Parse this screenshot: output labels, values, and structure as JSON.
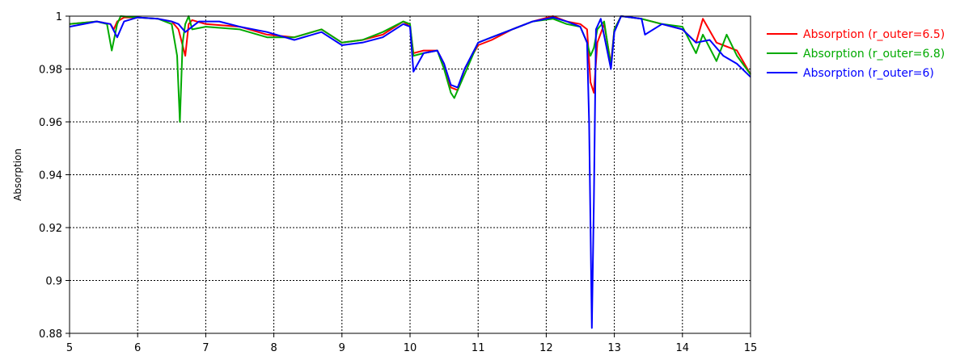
{
  "chart_data": {
    "type": "line",
    "title": "",
    "xlabel": "",
    "ylabel": "Absorption",
    "xlim": [
      5,
      15
    ],
    "ylim": [
      0.88,
      1.0
    ],
    "grid": true,
    "legend_position": "right",
    "x_ticks": [
      "5",
      "6",
      "7",
      "8",
      "9",
      "10",
      "11",
      "12",
      "13",
      "14",
      "15"
    ],
    "y_ticks": [
      "0.88",
      "0.9",
      "0.92",
      "0.94",
      "0.96",
      "0.98",
      "1"
    ],
    "series": [
      {
        "name": "Absorption (r_outer=6.5)",
        "color": "#ff0000",
        "points": [
          [
            5,
            0.997
          ],
          [
            5.4,
            0.998
          ],
          [
            5.6,
            0.997
          ],
          [
            5.65,
            0.995
          ],
          [
            5.7,
            0.998
          ],
          [
            5.8,
            0.9995
          ],
          [
            6,
            0.9995
          ],
          [
            6.3,
            0.999
          ],
          [
            6.5,
            0.998
          ],
          [
            6.6,
            0.995
          ],
          [
            6.7,
            0.985
          ],
          [
            6.75,
            0.997
          ],
          [
            6.8,
            0.9985
          ],
          [
            7,
            0.997
          ],
          [
            7.5,
            0.996
          ],
          [
            7.9,
            0.993
          ],
          [
            8.3,
            0.992
          ],
          [
            8.7,
            0.995
          ],
          [
            9,
            0.99
          ],
          [
            9.3,
            0.991
          ],
          [
            9.6,
            0.993
          ],
          [
            9.9,
            0.998
          ],
          [
            10,
            0.996
          ],
          [
            10.05,
            0.986
          ],
          [
            10.2,
            0.987
          ],
          [
            10.4,
            0.987
          ],
          [
            10.5,
            0.982
          ],
          [
            10.6,
            0.973
          ],
          [
            10.7,
            0.972
          ],
          [
            10.8,
            0.98
          ],
          [
            11,
            0.989
          ],
          [
            11.2,
            0.991
          ],
          [
            11.5,
            0.995
          ],
          [
            11.8,
            0.998
          ],
          [
            12.1,
            1.0
          ],
          [
            12.3,
            0.998
          ],
          [
            12.5,
            0.997
          ],
          [
            12.6,
            0.995
          ],
          [
            12.65,
            0.975
          ],
          [
            12.7,
            0.971
          ],
          [
            12.75,
            0.99
          ],
          [
            12.85,
            0.997
          ],
          [
            12.95,
            0.982
          ],
          [
            13,
            0.995
          ],
          [
            13.1,
            1.0
          ],
          [
            13.4,
            0.999
          ],
          [
            13.7,
            0.997
          ],
          [
            14,
            0.995
          ],
          [
            14.2,
            0.99
          ],
          [
            14.3,
            0.999
          ],
          [
            14.5,
            0.99
          ],
          [
            14.8,
            0.987
          ],
          [
            15,
            0.978
          ]
        ]
      },
      {
        "name": "Absorption (r_outer=6.8)",
        "color": "#00aa00",
        "points": [
          [
            5,
            0.997
          ],
          [
            5.4,
            0.998
          ],
          [
            5.55,
            0.997
          ],
          [
            5.62,
            0.987
          ],
          [
            5.7,
            0.997
          ],
          [
            5.75,
            1.0
          ],
          [
            6,
            0.9995
          ],
          [
            6.3,
            0.999
          ],
          [
            6.5,
            0.997
          ],
          [
            6.58,
            0.985
          ],
          [
            6.62,
            0.96
          ],
          [
            6.66,
            0.99
          ],
          [
            6.7,
            0.997
          ],
          [
            6.75,
            1.0
          ],
          [
            6.8,
            0.995
          ],
          [
            7,
            0.996
          ],
          [
            7.5,
            0.995
          ],
          [
            7.9,
            0.992
          ],
          [
            8.3,
            0.992
          ],
          [
            8.7,
            0.995
          ],
          [
            9,
            0.99
          ],
          [
            9.3,
            0.991
          ],
          [
            9.6,
            0.994
          ],
          [
            9.9,
            0.998
          ],
          [
            10,
            0.997
          ],
          [
            10.05,
            0.985
          ],
          [
            10.2,
            0.986
          ],
          [
            10.4,
            0.987
          ],
          [
            10.5,
            0.98
          ],
          [
            10.6,
            0.971
          ],
          [
            10.65,
            0.969
          ],
          [
            10.8,
            0.978
          ],
          [
            11,
            0.99
          ],
          [
            11.2,
            0.992
          ],
          [
            11.5,
            0.995
          ],
          [
            11.8,
            0.998
          ],
          [
            12.1,
            0.999
          ],
          [
            12.3,
            0.997
          ],
          [
            12.5,
            0.996
          ],
          [
            12.6,
            0.99
          ],
          [
            12.65,
            0.985
          ],
          [
            12.7,
            0.988
          ],
          [
            12.75,
            0.995
          ],
          [
            12.85,
            0.998
          ],
          [
            12.95,
            0.981
          ],
          [
            13,
            0.995
          ],
          [
            13.1,
            1.0
          ],
          [
            13.4,
            0.999
          ],
          [
            13.7,
            0.997
          ],
          [
            14,
            0.996
          ],
          [
            14.2,
            0.986
          ],
          [
            14.3,
            0.993
          ],
          [
            14.5,
            0.983
          ],
          [
            14.65,
            0.993
          ],
          [
            14.8,
            0.985
          ],
          [
            15,
            0.978
          ]
        ]
      },
      {
        "name": "Absorption (r_outer=6)",
        "color": "#0000ff",
        "points": [
          [
            5,
            0.996
          ],
          [
            5.4,
            0.998
          ],
          [
            5.6,
            0.997
          ],
          [
            5.7,
            0.992
          ],
          [
            5.8,
            0.998
          ],
          [
            6,
            0.9995
          ],
          [
            6.3,
            0.999
          ],
          [
            6.5,
            0.998
          ],
          [
            6.6,
            0.997
          ],
          [
            6.7,
            0.994
          ],
          [
            6.8,
            0.996
          ],
          [
            6.9,
            0.998
          ],
          [
            7.2,
            0.998
          ],
          [
            7.5,
            0.996
          ],
          [
            7.9,
            0.994
          ],
          [
            8.3,
            0.991
          ],
          [
            8.7,
            0.994
          ],
          [
            9,
            0.989
          ],
          [
            9.3,
            0.99
          ],
          [
            9.6,
            0.992
          ],
          [
            9.9,
            0.997
          ],
          [
            10,
            0.996
          ],
          [
            10.05,
            0.979
          ],
          [
            10.2,
            0.986
          ],
          [
            10.4,
            0.987
          ],
          [
            10.5,
            0.982
          ],
          [
            10.6,
            0.974
          ],
          [
            10.7,
            0.973
          ],
          [
            10.8,
            0.98
          ],
          [
            11,
            0.99
          ],
          [
            11.2,
            0.992
          ],
          [
            11.5,
            0.995
          ],
          [
            11.8,
            0.998
          ],
          [
            12.1,
            0.9995
          ],
          [
            12.3,
            0.998
          ],
          [
            12.5,
            0.996
          ],
          [
            12.6,
            0.99
          ],
          [
            12.63,
            0.96
          ],
          [
            12.67,
            0.882
          ],
          [
            12.7,
            0.93
          ],
          [
            12.73,
            0.995
          ],
          [
            12.8,
            0.999
          ],
          [
            12.95,
            0.98
          ],
          [
            13,
            0.994
          ],
          [
            13.1,
            1.0
          ],
          [
            13.4,
            0.999
          ],
          [
            13.45,
            0.993
          ],
          [
            13.7,
            0.997
          ],
          [
            14,
            0.995
          ],
          [
            14.2,
            0.99
          ],
          [
            14.4,
            0.991
          ],
          [
            14.6,
            0.985
          ],
          [
            14.8,
            0.982
          ],
          [
            15,
            0.977
          ]
        ]
      }
    ]
  }
}
